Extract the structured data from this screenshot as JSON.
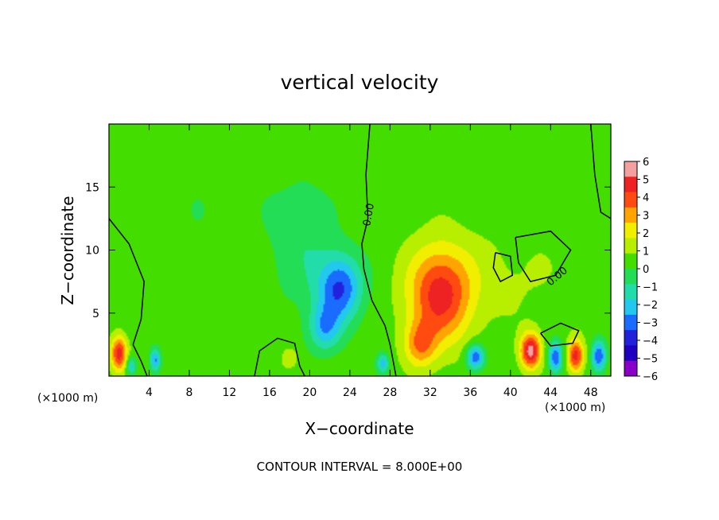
{
  "chart_data": {
    "type": "heatmap",
    "title": "vertical velocity",
    "xlabel": "X−coordinate",
    "ylabel": "Z−coordinate",
    "x_unit": "(×1000 m)",
    "z_unit": "(×1000 m)",
    "xlim": [
      0,
      50
    ],
    "ylim": [
      0,
      20
    ],
    "x_ticks": [
      4,
      8,
      12,
      16,
      20,
      24,
      28,
      32,
      36,
      40,
      44,
      48
    ],
    "y_ticks": [
      5,
      10,
      15
    ],
    "colorbar": {
      "levels": [
        6,
        5,
        4,
        3,
        2,
        1,
        0,
        -1,
        -2,
        -3,
        -4,
        -5,
        -6
      ],
      "labels": [
        "6",
        "5",
        "4",
        "3",
        "2",
        "1",
        "0",
        "−1",
        "−2",
        "−3",
        "−4",
        "−5",
        "−6"
      ],
      "colors": [
        "#f4a0a0",
        "#ee2222",
        "#ff4a10",
        "#ffa400",
        "#f2ee00",
        "#b8ee00",
        "#44dd00",
        "#22dd55",
        "#22ddaa",
        "#22c8ee",
        "#1a6bff",
        "#2222dd",
        "#2000c0",
        "#8800c8"
      ]
    },
    "contour_labels": [
      "0.00",
      "0.00"
    ],
    "features": [
      {
        "x": 33.0,
        "z": 6.5,
        "sx": 3.2,
        "sz": 3.8,
        "w": 5.0
      },
      {
        "x": 31.0,
        "z": 2.5,
        "sx": 1.6,
        "sz": 1.8,
        "w": 3.0
      },
      {
        "x": 23.0,
        "z": 7.0,
        "sx": 2.2,
        "sz": 2.6,
        "w": -4.5
      },
      {
        "x": 21.5,
        "z": 3.8,
        "sx": 1.6,
        "sz": 1.8,
        "w": -3.0
      },
      {
        "x": 19.5,
        "z": 10.5,
        "sx": 3.0,
        "sz": 5.0,
        "w": -1.2
      },
      {
        "x": 10.0,
        "z": 12.0,
        "sx": 8.0,
        "sz": 7.0,
        "w": -0.4
      },
      {
        "x": 40.0,
        "z": 8.0,
        "sx": 6.0,
        "sz": 4.0,
        "w": 0.6
      },
      {
        "x": 36.5,
        "z": 1.5,
        "sx": 0.9,
        "sz": 1.0,
        "w": -4.5
      },
      {
        "x": 42.0,
        "z": 2.0,
        "sx": 1.0,
        "sz": 1.4,
        "w": 6.0
      },
      {
        "x": 44.5,
        "z": 1.5,
        "sx": 0.7,
        "sz": 1.2,
        "w": -4.5
      },
      {
        "x": 46.5,
        "z": 1.6,
        "sx": 0.8,
        "sz": 1.3,
        "w": 5.0
      },
      {
        "x": 48.8,
        "z": 1.6,
        "sx": 0.7,
        "sz": 1.2,
        "w": -4.5
      },
      {
        "x": 1.0,
        "z": 1.8,
        "sx": 0.8,
        "sz": 1.4,
        "w": 5.0
      },
      {
        "x": 2.2,
        "z": 0.8,
        "sx": 0.5,
        "sz": 0.7,
        "w": -3.0
      },
      {
        "x": 4.6,
        "z": 1.3,
        "sx": 0.5,
        "sz": 0.9,
        "w": -3.5
      },
      {
        "x": 27.3,
        "z": 1.0,
        "sx": 0.6,
        "sz": 0.8,
        "w": -3.0
      },
      {
        "x": 18.0,
        "z": 1.4,
        "sx": 0.8,
        "sz": 0.8,
        "w": 1.5
      }
    ],
    "contours": [
      [
        [
          0,
          12.5
        ],
        [
          2.0,
          10.5
        ],
        [
          3.5,
          7.5
        ],
        [
          3.2,
          4.5
        ],
        [
          2.4,
          2.5
        ],
        [
          3.2,
          1.2
        ],
        [
          3.8,
          0
        ]
      ],
      [
        [
          26.0,
          20.0
        ],
        [
          25.6,
          16.0
        ],
        [
          25.8,
          12.5
        ],
        [
          25.2,
          10.5
        ],
        [
          25.4,
          8.5
        ],
        [
          26.2,
          6.0
        ],
        [
          27.5,
          4.0
        ],
        [
          28.0,
          2.5
        ],
        [
          28.6,
          0
        ]
      ],
      [
        [
          40.5,
          11.0
        ],
        [
          44.0,
          11.5
        ],
        [
          46.0,
          10.0
        ],
        [
          44.5,
          8.0
        ],
        [
          42.0,
          7.5
        ],
        [
          40.8,
          9.0
        ],
        [
          40.5,
          11.0
        ]
      ],
      [
        [
          48.0,
          20.0
        ],
        [
          48.4,
          16.0
        ],
        [
          49.0,
          13.0
        ],
        [
          50.0,
          12.5
        ]
      ],
      [
        [
          38.5,
          9.8
        ],
        [
          40.0,
          9.5
        ],
        [
          40.2,
          8.0
        ],
        [
          39.0,
          7.5
        ],
        [
          38.3,
          8.6
        ],
        [
          38.5,
          9.8
        ]
      ],
      [
        [
          14.5,
          0
        ],
        [
          15.0,
          2.0
        ],
        [
          16.8,
          3.0
        ],
        [
          18.5,
          2.6
        ],
        [
          19.0,
          0.8
        ],
        [
          19.5,
          0
        ]
      ],
      [
        [
          43.0,
          3.4
        ],
        [
          45.0,
          4.2
        ],
        [
          46.8,
          3.6
        ],
        [
          46.2,
          2.6
        ],
        [
          44.0,
          2.4
        ],
        [
          43.0,
          3.4
        ]
      ]
    ],
    "note": "CONTOUR INTERVAL = 8.000E+00"
  }
}
